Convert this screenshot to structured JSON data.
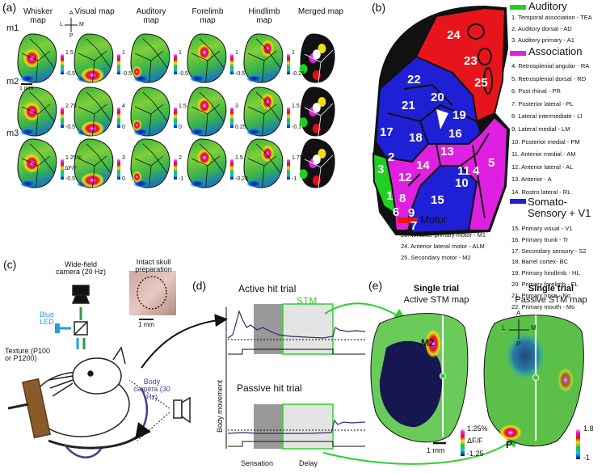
{
  "panel_a": {
    "label": "(a)",
    "columns": [
      "Whisker map",
      "Visual map",
      "Auditory map",
      "Forelimb map",
      "Hindlimb map",
      "Merged map"
    ],
    "rows": [
      {
        "name": "m1",
        "colorbars": [
          [
            1.5,
            -0.5
          ],
          [
            1,
            -0.5
          ],
          [
            1,
            -0.5
          ],
          [
            1,
            -0.5
          ],
          [
            1,
            -0.25
          ]
        ]
      },
      {
        "name": "m2",
        "colorbars": [
          [
            2.75,
            -0.5
          ],
          [
            4,
            0
          ],
          [
            1.5,
            0
          ],
          [
            3,
            0.25
          ],
          [
            1.5,
            -0.1
          ]
        ]
      },
      {
        "name": "m3",
        "colorbars": [
          [
            "1.25%",
            -0.5
          ],
          [
            3,
            0
          ],
          [
            2,
            -1
          ],
          [
            1.5,
            -0.25
          ],
          [
            1.75,
            -1
          ]
        ],
        "unit": "ΔF/F"
      }
    ],
    "scale_bar": "1 mm",
    "compass": [
      "A",
      "L",
      "M",
      "P"
    ]
  },
  "panel_b": {
    "label": "(b)",
    "map_labels": [
      1,
      2,
      3,
      4,
      5,
      6,
      7,
      8,
      9,
      10,
      11,
      12,
      13,
      14,
      15,
      16,
      17,
      18,
      19,
      20,
      21,
      22,
      23,
      24,
      25
    ],
    "groups": [
      {
        "title": "Auditory",
        "items": [
          "1. Temporal association - TEA",
          "2. Auditory dorsal - AD",
          "3. Auditory primary - A1"
        ]
      },
      {
        "title": "Association",
        "items": [
          "4. Retrosplenial angular - RA",
          "5. Retrosplenial dorsal - RD",
          "6. Post rhinal - PR",
          "7. Posterior lateral - PL",
          "8. Lateral intermediate - LI",
          "9. Lateral medial - LM",
          "10. Posterior medial - PM",
          "11. Anterior medial - AM",
          "12. Anterior lateral - AL",
          "13. Anterior - A",
          "14. Rostro lateral - RL"
        ]
      },
      {
        "title": "Somato-Sensory + V1",
        "items": [
          "15. Primary visual - V1",
          "16. Primary trunk - Tr",
          "17. Secondary sensory - S2",
          "18. Barrel cortex- BC",
          "19. Primary hindlimb - HL",
          "20. Primary forelimb - FL",
          "21. Primary nose - No",
          "22. Primary mouth - Mo"
        ]
      },
      {
        "title": "Motor",
        "items": [
          "23. Whisker primary motor - M1",
          "24. Anterior lateral motor - ALM",
          "25. Secondary motor - M2"
        ]
      }
    ]
  },
  "panel_c": {
    "label": "(c)",
    "wide_field_camera": "Wide-field camera (20 Hz)",
    "skull": "Intact skull preparation",
    "led": "Blue LED",
    "scale_bar": "1 mm",
    "texture": "Texture (P100 or P1200)",
    "body_camera": "Body camera (30 Hz)"
  },
  "panel_d": {
    "label": "(d)",
    "active": "Active hit trial",
    "stm": "STM",
    "passive": "Passive hit trial",
    "y_label": "Body movement",
    "sensation": "Sensation",
    "delay": "Delay"
  },
  "panel_e": {
    "label": "(e)",
    "left_title": "Single trial",
    "left_subtitle": "Active STM map",
    "right_title": "Single trial",
    "right_subtitle": "Passive STM map",
    "m2": "M2",
    "p": "P",
    "scale_bar": "1 mm",
    "left_colorbar": [
      "1.25%",
      "ΔF/F",
      -1.25
    ],
    "right_colorbar": [
      1.8,
      -1
    ],
    "compass": [
      "A",
      "L",
      "M",
      "P"
    ]
  }
}
